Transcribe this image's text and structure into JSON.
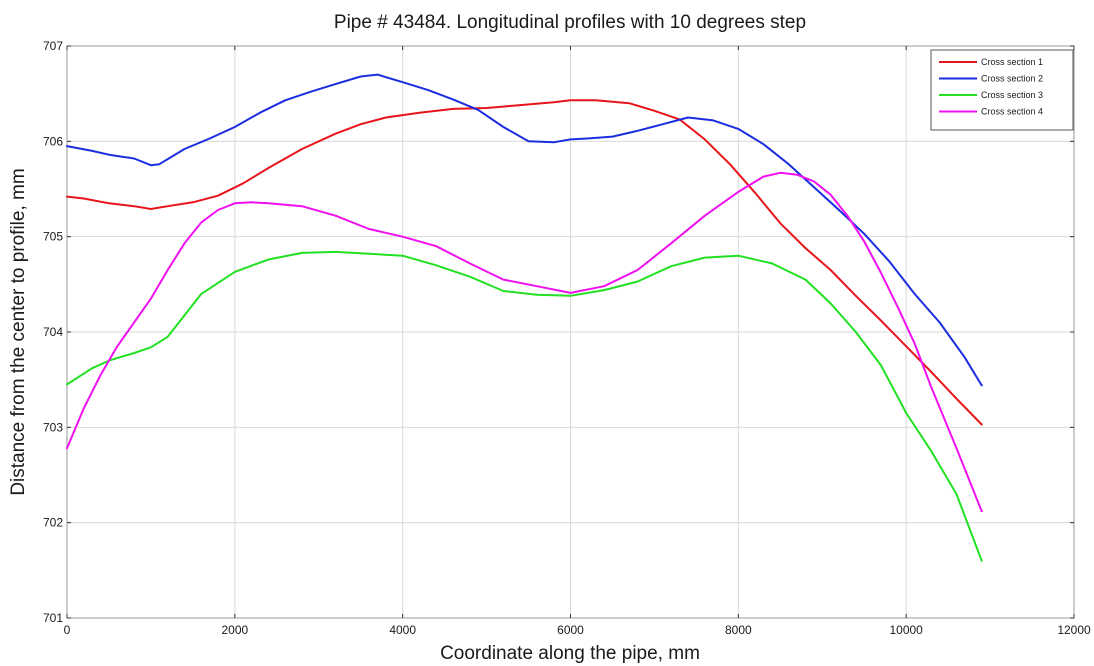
{
  "chart_data": {
    "type": "line",
    "title": "Pipe # 43484. Longitudinal profiles with 10 degrees step",
    "xlabel": "Coordinate along the pipe, mm",
    "ylabel": "Distance from the center to profile, mm",
    "xlim": [
      0,
      12000
    ],
    "ylim": [
      701,
      707
    ],
    "xticks": [
      "0",
      "2000",
      "4000",
      "6000",
      "8000",
      "10000",
      "12000"
    ],
    "yticks": [
      "701",
      "702",
      "703",
      "704",
      "705",
      "706",
      "707"
    ],
    "grid": true,
    "legend_position": "top-right",
    "series": [
      {
        "name": "Cross section 1",
        "color": "#e8141b",
        "x": [
          0,
          200,
          500,
          800,
          1000,
          1200,
          1500,
          1800,
          2100,
          2400,
          2800,
          3200,
          3500,
          3800,
          4200,
          4600,
          5000,
          5400,
          5800,
          6000,
          6300,
          6700,
          7000,
          7300,
          7600,
          7900,
          8200,
          8500,
          8800,
          9100,
          9400,
          9700,
          10000,
          10300,
          10600,
          10900
        ],
        "y": [
          705.42,
          705.4,
          705.35,
          705.32,
          705.29,
          705.32,
          705.36,
          705.43,
          705.56,
          705.72,
          705.92,
          706.08,
          706.18,
          706.25,
          706.3,
          706.34,
          706.35,
          706.38,
          706.41,
          706.43,
          706.43,
          706.4,
          706.32,
          706.23,
          706.02,
          705.76,
          705.46,
          705.14,
          704.88,
          704.65,
          704.38,
          704.12,
          703.85,
          703.58,
          703.3,
          703.03
        ]
      },
      {
        "name": "Cross section 2",
        "color": "#1a2ee0",
        "x": [
          0,
          300,
          500,
          800,
          1000,
          1100,
          1400,
          1700,
          2000,
          2300,
          2600,
          2900,
          3200,
          3500,
          3700,
          4000,
          4300,
          4600,
          4900,
          5200,
          5500,
          5800,
          6000,
          6200,
          6500,
          6800,
          7100,
          7400,
          7700,
          8000,
          8300,
          8600,
          8900,
          9200,
          9500,
          9800,
          10100,
          10400,
          10700,
          10900
        ],
        "y": [
          705.95,
          705.9,
          705.86,
          705.82,
          705.75,
          705.76,
          705.92,
          706.03,
          706.15,
          706.3,
          706.43,
          706.52,
          706.6,
          706.68,
          706.7,
          706.62,
          706.54,
          706.44,
          706.33,
          706.15,
          706.0,
          705.99,
          706.02,
          706.03,
          706.05,
          706.11,
          706.18,
          706.25,
          706.22,
          706.13,
          705.97,
          705.76,
          705.52,
          705.28,
          705.03,
          704.74,
          704.4,
          704.1,
          703.73,
          703.44
        ]
      },
      {
        "name": "Cross section 3",
        "color": "#22e022",
        "x": [
          0,
          300,
          500,
          800,
          1000,
          1200,
          1600,
          2000,
          2400,
          2800,
          3200,
          3600,
          4000,
          4400,
          4800,
          5200,
          5600,
          6000,
          6400,
          6800,
          7200,
          7600,
          8000,
          8400,
          8800,
          9100,
          9400,
          9700,
          10000,
          10300,
          10600,
          10900
        ],
        "y": [
          703.45,
          703.62,
          703.7,
          703.78,
          703.84,
          703.95,
          704.4,
          704.63,
          704.76,
          704.83,
          704.84,
          704.82,
          704.8,
          704.7,
          704.58,
          704.43,
          704.39,
          704.38,
          704.44,
          704.53,
          704.69,
          704.78,
          704.8,
          704.72,
          704.55,
          704.3,
          704.0,
          703.65,
          703.15,
          702.75,
          702.3,
          701.6
        ]
      },
      {
        "name": "Cross section 4",
        "color": "#f010f0",
        "x": [
          0,
          200,
          400,
          600,
          800,
          1000,
          1200,
          1400,
          1600,
          1800,
          2000,
          2200,
          2400,
          2800,
          3200,
          3600,
          4000,
          4400,
          4800,
          5200,
          5600,
          6000,
          6400,
          6800,
          7200,
          7600,
          8000,
          8300,
          8500,
          8700,
          8900,
          9100,
          9300,
          9500,
          9700,
          9900,
          10100,
          10300,
          10600,
          10900
        ],
        "y": [
          702.78,
          703.2,
          703.55,
          703.85,
          704.1,
          704.35,
          704.65,
          704.93,
          705.15,
          705.28,
          705.35,
          705.36,
          705.35,
          705.32,
          705.22,
          705.08,
          705.0,
          704.9,
          704.72,
          704.55,
          704.48,
          704.41,
          704.48,
          704.65,
          704.93,
          705.22,
          705.47,
          705.63,
          705.67,
          705.65,
          705.58,
          705.44,
          705.22,
          704.95,
          704.62,
          704.26,
          703.88,
          703.42,
          702.78,
          702.12
        ]
      }
    ]
  }
}
